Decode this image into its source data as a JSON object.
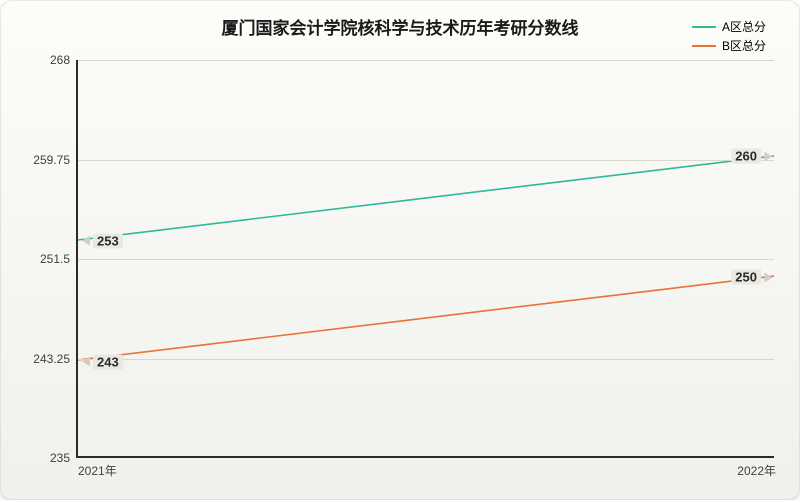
{
  "chart": {
    "type": "line",
    "title": "厦门国家会计学院核科学与技术历年考研分数线",
    "title_fontsize": 17,
    "title_color": "#1a1a1a",
    "background_gradient": [
      "#fcfcf9",
      "#f0f0ec"
    ],
    "border_radius": 12,
    "axis_color": "#2b2b2b",
    "grid_color": "#d8d6ce",
    "label_fontsize": 12,
    "label_color": "#404040",
    "point_label_fontsize": 13,
    "point_label_bg": "#e9e8e1",
    "point_label_arrow": "#d0cec6",
    "x": {
      "categories": [
        "2021年",
        "2022年"
      ]
    },
    "y": {
      "min": 235,
      "max": 268,
      "ticks": [
        235,
        243.25,
        251.5,
        259.75,
        268
      ]
    },
    "series": [
      {
        "name": "A区总分",
        "color": "#2fb89a",
        "line_width": 1.6,
        "values": [
          253,
          260
        ]
      },
      {
        "name": "B区总分",
        "color": "#e9713a",
        "line_width": 1.6,
        "values": [
          243,
          250
        ]
      }
    ],
    "legend": {
      "position": "top-right",
      "item_fontsize": 12
    }
  }
}
